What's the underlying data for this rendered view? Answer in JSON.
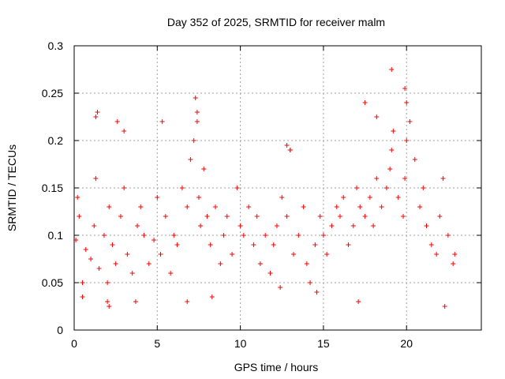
{
  "chart_data": {
    "type": "scatter",
    "title": "Day 352 of 2025, SRMTID for receiver malm",
    "xlabel": "GPS time / hours",
    "ylabel": "SRMTID / TECUs",
    "xlim": [
      0,
      24.5
    ],
    "ylim": [
      0,
      0.3
    ],
    "x_ticks": [
      0,
      5,
      10,
      15,
      20
    ],
    "x_tick_labels": [
      "0",
      "5",
      "10",
      "15",
      "20"
    ],
    "y_ticks": [
      0,
      0.05,
      0.1,
      0.15,
      0.2,
      0.25,
      0.3
    ],
    "y_tick_labels": [
      "0",
      "0.05",
      "0.1",
      "0.15",
      "0.2",
      "0.25",
      "0.3"
    ],
    "grid": true,
    "marker": "+",
    "marker_color": "#ff0000",
    "series": [
      {
        "name": "SRMTID",
        "x": [
          0.1,
          0.2,
          0.3,
          0.5,
          0.7,
          1.0,
          1.2,
          1.3,
          1.5,
          1.8,
          2.0,
          2.1,
          2.3,
          2.5,
          2.8,
          3.0,
          3.2,
          3.5,
          3.8,
          4.0,
          4.2,
          4.5,
          4.8,
          5.0,
          5.2,
          5.5,
          5.8,
          6.0,
          6.2,
          6.5,
          6.8,
          7.0,
          7.2,
          7.4,
          7.5,
          7.6,
          7.8,
          8.0,
          8.2,
          8.5,
          8.8,
          9.0,
          9.2,
          9.5,
          9.8,
          10.0,
          10.2,
          10.5,
          10.8,
          11.0,
          11.2,
          11.5,
          11.8,
          12.0,
          12.2,
          12.5,
          12.8,
          13.0,
          13.2,
          13.5,
          13.8,
          14.0,
          14.2,
          14.5,
          14.8,
          15.0,
          15.2,
          15.5,
          15.8,
          16.0,
          16.2,
          16.5,
          16.8,
          17.0,
          17.2,
          17.5,
          17.8,
          18.0,
          18.2,
          18.5,
          18.8,
          19.0,
          19.1,
          19.2,
          19.5,
          19.8,
          19.9,
          20.0,
          20.2,
          20.5,
          20.8,
          21.0,
          21.2,
          21.5,
          21.8,
          22.0,
          22.2,
          22.5,
          22.8,
          22.9,
          1.3,
          1.4,
          2.6,
          3.0,
          5.3,
          7.3,
          7.4,
          12.8,
          13.0,
          17.5,
          18.2,
          19.1,
          19.9,
          20.0,
          0.5,
          2.0,
          2.1,
          3.7,
          6.8,
          8.3,
          12.4,
          14.6,
          17.1,
          22.3
        ],
        "values": [
          0.095,
          0.14,
          0.12,
          0.05,
          0.085,
          0.075,
          0.11,
          0.16,
          0.065,
          0.1,
          0.05,
          0.13,
          0.09,
          0.07,
          0.12,
          0.15,
          0.08,
          0.06,
          0.11,
          0.13,
          0.1,
          0.07,
          0.095,
          0.14,
          0.08,
          0.12,
          0.06,
          0.1,
          0.09,
          0.15,
          0.13,
          0.18,
          0.2,
          0.22,
          0.14,
          0.11,
          0.17,
          0.12,
          0.09,
          0.13,
          0.07,
          0.1,
          0.12,
          0.08,
          0.15,
          0.11,
          0.1,
          0.13,
          0.09,
          0.12,
          0.07,
          0.1,
          0.06,
          0.09,
          0.11,
          0.14,
          0.12,
          0.19,
          0.08,
          0.1,
          0.13,
          0.07,
          0.05,
          0.09,
          0.12,
          0.1,
          0.08,
          0.11,
          0.13,
          0.12,
          0.14,
          0.09,
          0.11,
          0.15,
          0.13,
          0.12,
          0.14,
          0.11,
          0.16,
          0.13,
          0.15,
          0.17,
          0.19,
          0.21,
          0.14,
          0.12,
          0.16,
          0.2,
          0.22,
          0.18,
          0.13,
          0.15,
          0.11,
          0.09,
          0.08,
          0.12,
          0.16,
          0.1,
          0.07,
          0.08,
          0.225,
          0.23,
          0.22,
          0.21,
          0.22,
          0.245,
          0.23,
          0.195,
          0.19,
          0.24,
          0.225,
          0.275,
          0.255,
          0.24,
          0.035,
          0.03,
          0.025,
          0.03,
          0.03,
          0.035,
          0.045,
          0.04,
          0.03,
          0.025
        ]
      }
    ]
  }
}
